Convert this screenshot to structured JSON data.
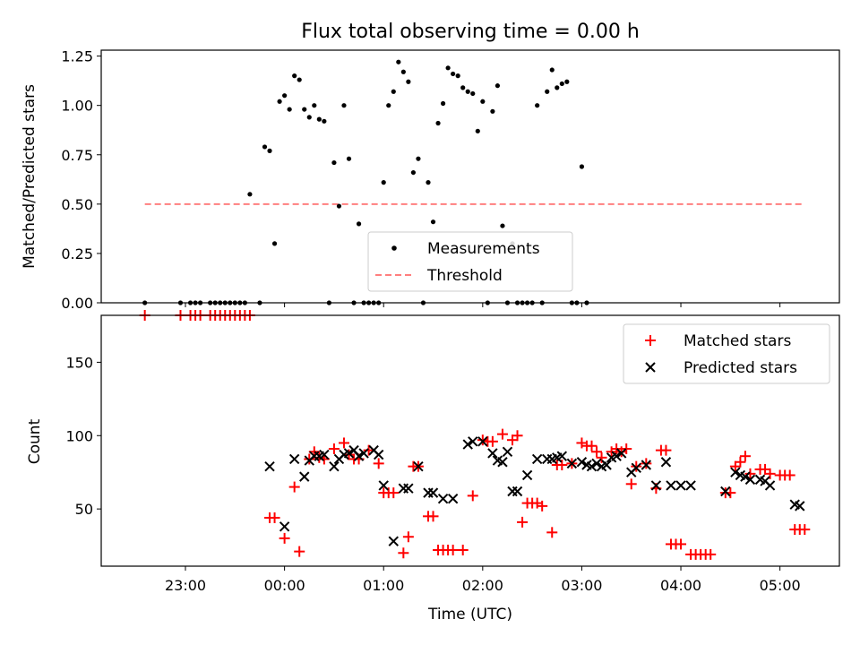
{
  "colors": {
    "measurement": "#000000",
    "threshold": "#ff7f7f",
    "matched": "#ff0000",
    "predicted": "#000000"
  },
  "chart_data": [
    {
      "type": "scatter",
      "title": "Flux total observing time = 0.00 h",
      "xlabel": "",
      "ylabel": "Matched/Predicted stars",
      "xlim": [
        -1.85,
        5.6
      ],
      "ylim": [
        0,
        1.28
      ],
      "ytick_labels": [
        "0.00",
        "0.25",
        "0.50",
        "0.75",
        "1.00",
        "1.25"
      ],
      "yticks": [
        0,
        0.25,
        0.5,
        0.75,
        1.0,
        1.25
      ],
      "legend": {
        "position": "lower-center",
        "entries": [
          "Measurements",
          "Threshold"
        ]
      },
      "threshold": {
        "name": "Threshold",
        "value": 0.5,
        "x": [
          -1.41,
          5.25
        ]
      },
      "series": [
        {
          "name": "Measurements",
          "x": [
            -1.41,
            -1.05,
            -0.95,
            -0.9,
            -0.85,
            -0.75,
            -0.7,
            -0.65,
            -0.6,
            -0.55,
            -0.5,
            -0.45,
            -0.4,
            -0.35,
            -0.25,
            -0.2,
            -0.15,
            -0.1,
            -0.05,
            0.0,
            0.05,
            0.1,
            0.15,
            0.2,
            0.25,
            0.3,
            0.35,
            0.4,
            0.45,
            0.5,
            0.55,
            0.6,
            0.65,
            0.7,
            0.75,
            0.8,
            0.85,
            0.9,
            0.95,
            1.0,
            1.05,
            1.1,
            1.15,
            1.2,
            1.25,
            1.3,
            1.35,
            1.4,
            1.45,
            1.5,
            1.55,
            1.6,
            1.65,
            1.7,
            1.75,
            1.8,
            1.85,
            1.9,
            1.95,
            2.0,
            2.05,
            2.1,
            2.15,
            2.2,
            2.25,
            2.3,
            2.35,
            2.4,
            2.45,
            2.5,
            2.55,
            2.6,
            2.65,
            2.7,
            2.75,
            2.8,
            2.85,
            2.9,
            2.95,
            3.0,
            3.05,
            3.1,
            3.15,
            3.2,
            3.25,
            3.3,
            3.35,
            3.4,
            3.45,
            3.5,
            3.55,
            3.6,
            3.65,
            3.7,
            3.75,
            3.8,
            3.85,
            3.9,
            3.95,
            4.0,
            4.05,
            4.1,
            4.15,
            4.2,
            4.25,
            4.3,
            4.35,
            4.4,
            4.45,
            4.5,
            4.55,
            4.6,
            4.65,
            4.7,
            4.75,
            4.8,
            4.85,
            4.9,
            4.95,
            5.0,
            5.05,
            5.1,
            5.15,
            5.2,
            5.25
          ],
          "y": [
            0,
            0,
            0,
            0,
            0,
            0,
            0,
            0,
            0,
            0,
            0,
            0,
            0,
            0.55,
            0,
            0.79,
            0.77,
            0.3,
            1.02,
            1.05,
            0.98,
            1.15,
            1.13,
            0.98,
            0.94,
            1.0,
            0.93,
            0.92,
            0,
            0.71,
            0.49,
            1.0,
            0.73,
            0,
            0.4,
            0,
            0,
            0,
            0,
            0.61,
            1.0,
            1.07,
            1.22,
            1.17,
            1.12,
            0.66,
            0.73,
            0,
            0.61,
            0.41,
            0.91,
            1.01,
            1.19,
            1.16,
            1.15,
            1.09,
            1.07,
            1.06,
            0.87,
            1.02,
            0,
            0.97,
            1.1,
            0.39,
            0,
            0.3,
            0,
            0,
            0,
            0,
            1.0,
            0,
            1.07,
            1.18,
            1.09,
            1.11,
            1.12,
            0,
            0,
            0.69,
            0,
            null,
            null,
            null,
            null,
            null,
            null,
            null,
            null,
            null,
            null,
            null,
            null,
            null,
            null,
            null,
            null,
            null,
            null,
            null,
            null,
            null,
            null,
            null,
            null,
            null,
            null,
            null,
            null,
            null,
            null,
            null,
            null,
            null,
            null,
            null,
            null,
            null,
            null,
            null,
            null,
            null,
            null,
            null,
            null
          ]
        }
      ]
    },
    {
      "type": "scatter",
      "title": "",
      "xlabel": "Time (UTC)",
      "ylabel": "Count",
      "xlim": [
        -1.85,
        5.6
      ],
      "ylim": [
        11,
        182
      ],
      "ytick_labels": [
        "50",
        "100",
        "150"
      ],
      "yticks": [
        50,
        100,
        150
      ],
      "xtick_labels": [
        "23:00",
        "00:00",
        "01:00",
        "02:00",
        "03:00",
        "04:00",
        "05:00"
      ],
      "xticks": [
        -1,
        0,
        1,
        2,
        3,
        4,
        5
      ],
      "legend": {
        "position": "top-right",
        "entries": [
          "Matched stars",
          "Predicted stars"
        ]
      },
      "series": [
        {
          "name": "Matched stars",
          "marker": "plus",
          "x": [
            -1.41,
            -1.05,
            -0.95,
            -0.9,
            -0.85,
            -0.75,
            -0.7,
            -0.65,
            -0.6,
            -0.55,
            -0.5,
            -0.45,
            -0.4,
            -0.35,
            -0.15,
            -0.1,
            0.0,
            0.1,
            0.15,
            0.25,
            0.3,
            0.35,
            0.4,
            0.5,
            0.6,
            0.65,
            0.7,
            0.75,
            0.85,
            0.95,
            1.0,
            1.05,
            1.1,
            1.2,
            1.25,
            1.3,
            1.35,
            1.45,
            1.5,
            1.55,
            1.6,
            1.65,
            1.7,
            1.8,
            1.9,
            2.0,
            2.05,
            2.1,
            2.2,
            2.3,
            2.35,
            2.4,
            2.45,
            2.5,
            2.55,
            2.6,
            2.7,
            2.75,
            2.8,
            2.9,
            3.0,
            3.05,
            3.1,
            3.15,
            3.2,
            3.3,
            3.35,
            3.4,
            3.45,
            3.5,
            3.55,
            3.65,
            3.75,
            3.8,
            3.85,
            3.9,
            3.95,
            4.0,
            4.1,
            4.15,
            4.2,
            4.25,
            4.3,
            4.45,
            4.5,
            4.55,
            4.6,
            4.65,
            4.7,
            4.8,
            4.85,
            4.9,
            5.0,
            5.05,
            5.1,
            5.15,
            5.2,
            5.25
          ],
          "y": [
            182,
            182,
            182,
            182,
            182,
            182,
            182,
            182,
            182,
            182,
            182,
            182,
            182,
            182,
            44,
            44,
            30,
            65,
            21,
            84,
            89,
            85,
            84,
            91,
            95,
            87,
            84,
            84,
            90,
            81,
            61,
            61,
            61,
            20,
            31,
            79,
            79,
            45,
            45,
            22,
            22,
            22,
            22,
            22,
            59,
            97,
            96,
            96,
            101,
            97,
            100,
            41,
            54,
            54,
            54,
            52,
            34,
            80,
            80,
            81,
            95,
            93,
            93,
            89,
            85,
            89,
            91,
            89,
            91,
            67,
            79,
            81,
            64,
            90,
            90,
            26,
            26,
            26,
            19,
            19,
            19,
            19,
            19,
            61,
            61,
            79,
            82,
            86,
            74,
            77,
            77,
            74,
            73,
            73,
            73,
            36,
            36,
            36
          ]
        },
        {
          "name": "Predicted stars",
          "marker": "x",
          "x": [
            -0.15,
            0.0,
            0.1,
            0.2,
            0.25,
            0.3,
            0.35,
            0.4,
            0.5,
            0.55,
            0.6,
            0.65,
            0.7,
            0.75,
            0.8,
            0.9,
            0.95,
            1.0,
            1.1,
            1.2,
            1.25,
            1.35,
            1.45,
            1.5,
            1.6,
            1.7,
            1.85,
            1.9,
            2.0,
            2.1,
            2.15,
            2.2,
            2.25,
            2.3,
            2.35,
            2.45,
            2.55,
            2.65,
            2.7,
            2.75,
            2.8,
            2.9,
            3.0,
            3.05,
            3.1,
            3.15,
            3.2,
            3.25,
            3.3,
            3.35,
            3.4,
            3.5,
            3.55,
            3.65,
            3.75,
            3.85,
            3.9,
            4.0,
            4.1,
            4.45,
            4.55,
            4.6,
            4.65,
            4.7,
            4.8,
            4.85,
            4.9,
            5.15,
            5.2
          ],
          "y": [
            79,
            38,
            84,
            72,
            83,
            86,
            86,
            87,
            79,
            84,
            87,
            88,
            90,
            86,
            88,
            90,
            87,
            66,
            28,
            64,
            64,
            79,
            61,
            61,
            57,
            57,
            94,
            96,
            96,
            88,
            83,
            82,
            89,
            62,
            62,
            73,
            84,
            84,
            84,
            85,
            86,
            81,
            82,
            80,
            79,
            81,
            79,
            80,
            85,
            86,
            88,
            75,
            78,
            80,
            66,
            82,
            66,
            66,
            66,
            62,
            75,
            73,
            72,
            70,
            70,
            69,
            66,
            53,
            52
          ]
        }
      ]
    }
  ]
}
